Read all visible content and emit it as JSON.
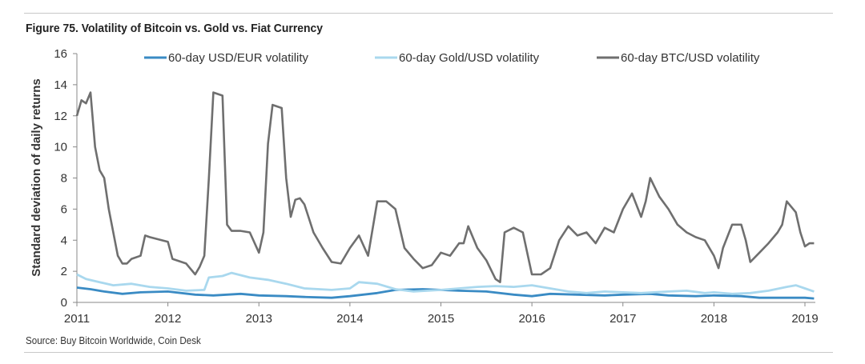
{
  "title": "Figure 75. Volatility of Bitcoin vs. Gold vs. Fiat Currency",
  "source": "Source: Buy Bitcoin Worldwide, Coin Desk",
  "chart_data": {
    "type": "line",
    "ylabel": "Standard deviation of daily returns",
    "xlabel": "",
    "ylim": [
      0,
      16
    ],
    "xlim": [
      2011,
      2019.1
    ],
    "yticks": [
      0,
      2,
      4,
      6,
      8,
      10,
      12,
      14,
      16
    ],
    "yticklabels": [
      "0",
      "2",
      "4",
      "6",
      "8",
      "10",
      "12",
      "14",
      "16"
    ],
    "xticks": [
      2011,
      2012,
      2013,
      2014,
      2015,
      2016,
      2017,
      2018,
      2019
    ],
    "xticklabels": [
      "2011",
      "2012",
      "2013",
      "2014",
      "2015",
      "2016",
      "2017",
      "2018",
      "2019"
    ],
    "grid": false,
    "legend_position": "top",
    "series": [
      {
        "name": "60-day USD/EUR volatility",
        "color": "#3a8bc4",
        "x": [
          2011.0,
          2011.15,
          2011.3,
          2011.5,
          2011.7,
          2012.0,
          2012.3,
          2012.5,
          2012.8,
          2013.0,
          2013.3,
          2013.5,
          2013.8,
          2014.0,
          2014.3,
          2014.5,
          2014.8,
          2015.0,
          2015.2,
          2015.5,
          2015.8,
          2016.0,
          2016.2,
          2016.5,
          2016.8,
          2017.0,
          2017.3,
          2017.5,
          2017.8,
          2018.0,
          2018.3,
          2018.5,
          2018.8,
          2019.0,
          2019.1
        ],
        "y": [
          0.95,
          0.85,
          0.7,
          0.55,
          0.65,
          0.7,
          0.5,
          0.45,
          0.55,
          0.45,
          0.4,
          0.35,
          0.3,
          0.4,
          0.6,
          0.8,
          0.85,
          0.8,
          0.75,
          0.7,
          0.5,
          0.4,
          0.55,
          0.5,
          0.45,
          0.5,
          0.55,
          0.45,
          0.4,
          0.45,
          0.4,
          0.3,
          0.3,
          0.3,
          0.25
        ]
      },
      {
        "name": "60-day Gold/USD volatility",
        "color": "#a9d8ee",
        "x": [
          2011.0,
          2011.1,
          2011.25,
          2011.4,
          2011.6,
          2011.8,
          2012.0,
          2012.2,
          2012.4,
          2012.45,
          2012.6,
          2012.7,
          2012.9,
          2013.1,
          2013.3,
          2013.5,
          2013.8,
          2014.0,
          2014.1,
          2014.3,
          2014.5,
          2014.7,
          2015.0,
          2015.2,
          2015.4,
          2015.6,
          2015.8,
          2016.0,
          2016.2,
          2016.4,
          2016.6,
          2016.8,
          2017.0,
          2017.2,
          2017.5,
          2017.7,
          2017.9,
          2018.0,
          2018.2,
          2018.4,
          2018.6,
          2018.8,
          2018.9,
          2019.0,
          2019.1
        ],
        "y": [
          1.8,
          1.5,
          1.3,
          1.1,
          1.2,
          1.0,
          0.9,
          0.75,
          0.8,
          1.6,
          1.7,
          1.9,
          1.6,
          1.45,
          1.2,
          0.9,
          0.8,
          0.9,
          1.3,
          1.2,
          0.85,
          0.7,
          0.8,
          0.9,
          1.0,
          1.05,
          1.0,
          1.1,
          0.9,
          0.7,
          0.6,
          0.7,
          0.65,
          0.6,
          0.7,
          0.75,
          0.6,
          0.65,
          0.55,
          0.6,
          0.75,
          1.0,
          1.1,
          0.9,
          0.7
        ]
      },
      {
        "name": "60-day BTC/USD volatility",
        "color": "#6f6f6f",
        "x": [
          2011.0,
          2011.05,
          2011.1,
          2011.15,
          2011.2,
          2011.25,
          2011.3,
          2011.35,
          2011.45,
          2011.5,
          2011.55,
          2011.6,
          2011.7,
          2011.75,
          2011.8,
          2012.0,
          2012.05,
          2012.2,
          2012.3,
          2012.35,
          2012.4,
          2012.45,
          2012.5,
          2012.6,
          2012.65,
          2012.7,
          2012.8,
          2012.9,
          2013.0,
          2013.05,
          2013.1,
          2013.15,
          2013.25,
          2013.3,
          2013.35,
          2013.4,
          2013.45,
          2013.5,
          2013.6,
          2013.7,
          2013.8,
          2013.9,
          2014.0,
          2014.1,
          2014.2,
          2014.3,
          2014.4,
          2014.5,
          2014.6,
          2014.7,
          2014.8,
          2014.9,
          2015.0,
          2015.1,
          2015.2,
          2015.25,
          2015.3,
          2015.4,
          2015.5,
          2015.6,
          2015.65,
          2015.7,
          2015.8,
          2015.9,
          2016.0,
          2016.1,
          2016.2,
          2016.3,
          2016.4,
          2016.5,
          2016.6,
          2016.7,
          2016.8,
          2016.9,
          2017.0,
          2017.1,
          2017.2,
          2017.25,
          2017.3,
          2017.4,
          2017.5,
          2017.6,
          2017.7,
          2017.8,
          2017.9,
          2018.0,
          2018.05,
          2018.1,
          2018.2,
          2018.3,
          2018.35,
          2018.4,
          2018.5,
          2018.6,
          2018.7,
          2018.75,
          2018.8,
          2018.9,
          2018.95,
          2019.0,
          2019.05,
          2019.1
        ],
        "y": [
          12.0,
          13.0,
          12.8,
          13.5,
          10.0,
          8.5,
          8.0,
          6.0,
          3.0,
          2.5,
          2.5,
          2.8,
          3.0,
          4.3,
          4.2,
          3.9,
          2.8,
          2.5,
          1.8,
          2.3,
          3.0,
          8.0,
          13.5,
          13.3,
          5.0,
          4.6,
          4.6,
          4.5,
          3.2,
          4.5,
          10.2,
          12.7,
          12.5,
          8.0,
          5.5,
          6.6,
          6.7,
          6.3,
          4.5,
          3.5,
          2.6,
          2.5,
          3.5,
          4.3,
          3.0,
          6.5,
          6.5,
          6.0,
          3.5,
          2.8,
          2.2,
          2.4,
          3.2,
          3.0,
          3.8,
          3.8,
          4.9,
          3.5,
          2.7,
          1.5,
          1.3,
          4.5,
          4.8,
          4.5,
          1.8,
          1.8,
          2.2,
          4.0,
          4.9,
          4.3,
          4.5,
          3.8,
          4.8,
          4.5,
          6.0,
          7.0,
          5.5,
          6.5,
          8.0,
          6.8,
          6.0,
          5.0,
          4.5,
          4.2,
          4.0,
          3.0,
          2.2,
          3.5,
          5.0,
          5.0,
          4.0,
          2.6,
          3.2,
          3.8,
          4.5,
          5.0,
          6.5,
          5.8,
          4.5,
          3.6,
          3.8,
          3.8
        ]
      }
    ]
  }
}
